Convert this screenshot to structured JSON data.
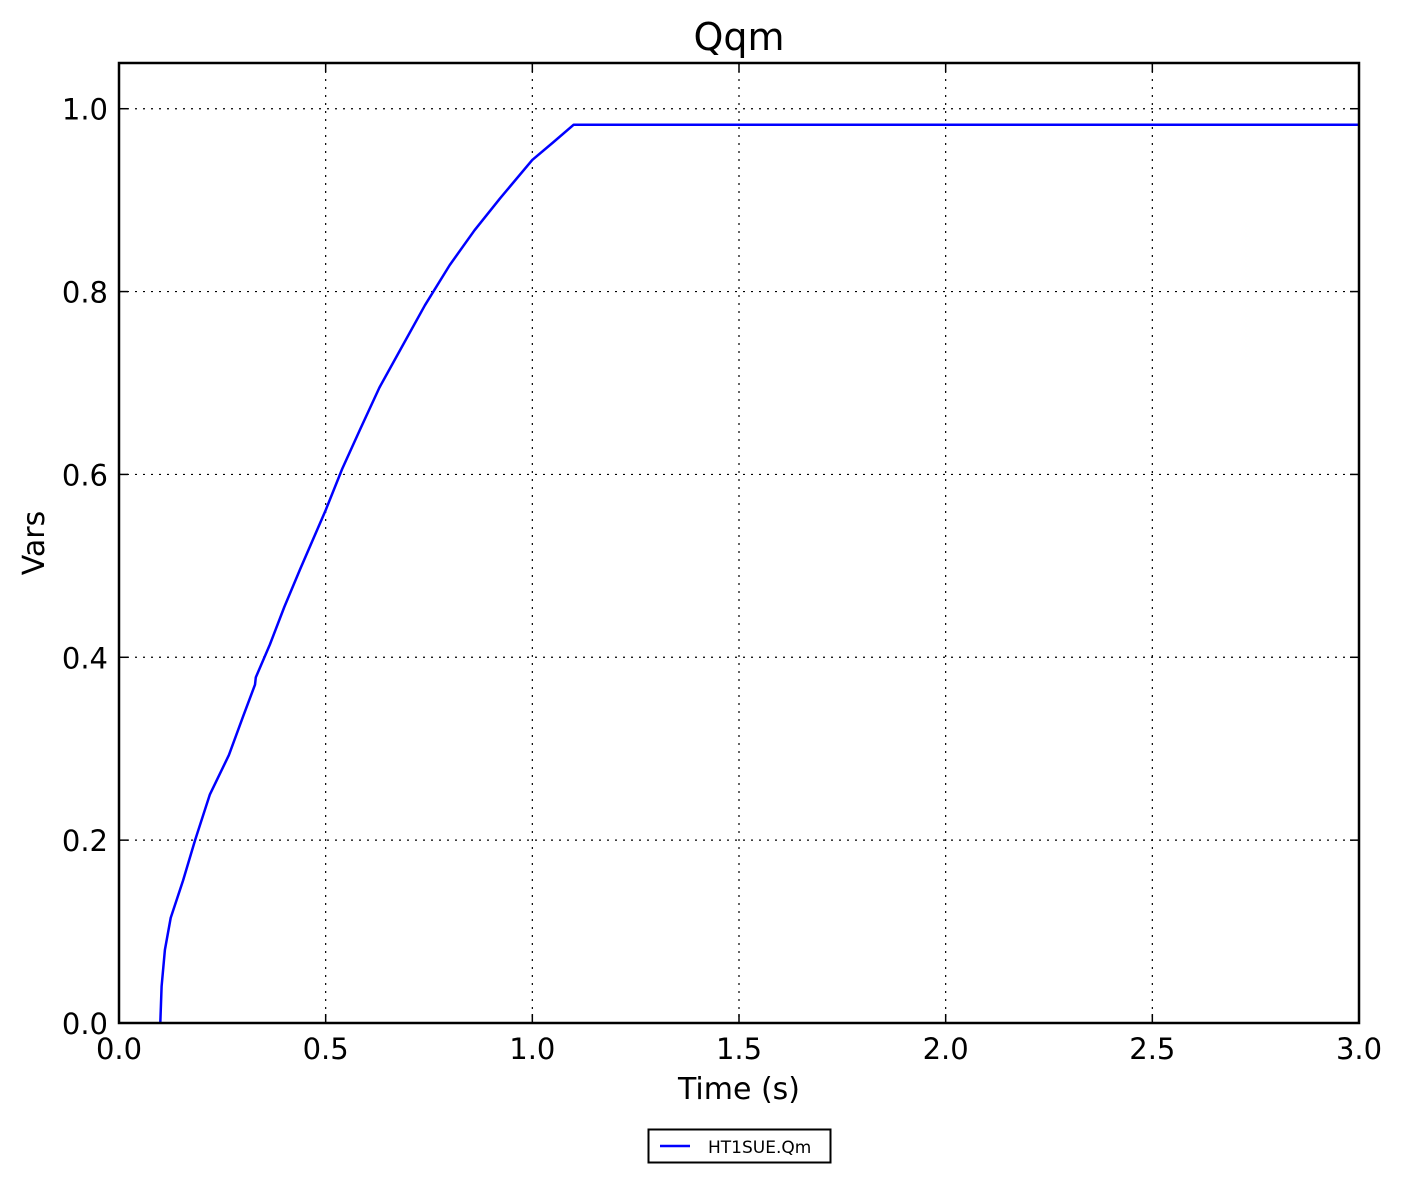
{
  "chart_data": {
    "type": "line",
    "title": "Qqm",
    "xlabel": "Time (s)",
    "ylabel": "Vars",
    "xlim": [
      0,
      3.0
    ],
    "ylim": [
      0,
      1.05
    ],
    "grid": true,
    "legend_placement": "bottom-center",
    "x_ticks": [
      "0.0",
      "0.5",
      "1.0",
      "1.5",
      "2.0",
      "2.5",
      "3.0"
    ],
    "y_ticks": [
      "0.0",
      "0.2",
      "0.4",
      "0.6",
      "0.8",
      "1.0"
    ],
    "series": [
      {
        "name": "HT1SUE.Qm",
        "color": "#0000ff",
        "x": [
          0.1,
          0.103,
          0.111,
          0.125,
          0.155,
          0.184,
          0.22,
          0.266,
          0.3,
          0.329,
          0.331,
          0.365,
          0.4,
          0.438,
          0.5,
          0.54,
          0.583,
          0.63,
          0.68,
          0.74,
          0.8,
          0.86,
          0.922,
          1.0,
          1.05,
          1.1,
          1.2,
          1.5,
          2.0,
          2.5,
          3.0
        ],
        "y": [
          0.0,
          0.04,
          0.08,
          0.115,
          0.156,
          0.2,
          0.25,
          0.293,
          0.335,
          0.37,
          0.378,
          0.414,
          0.455,
          0.496,
          0.561,
          0.606,
          0.649,
          0.695,
          0.736,
          0.785,
          0.829,
          0.867,
          0.902,
          0.944,
          0.963,
          0.9825,
          0.9825,
          0.9825,
          0.9825,
          0.9825,
          0.9825
        ]
      }
    ]
  }
}
